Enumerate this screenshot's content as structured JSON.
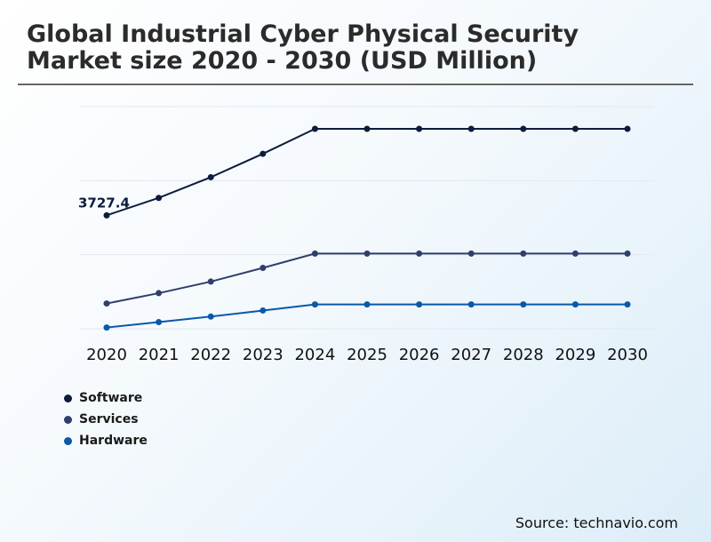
{
  "title": "Global Industrial Cyber Physical Security Market size 2020 - 2030 (USD Million)",
  "source": "Source: technavio.com",
  "chart_data": {
    "type": "line",
    "title": "Global Industrial Cyber Physical Security Market size 2020 - 2030 (USD Million)",
    "xlabel": "",
    "ylabel": "",
    "categories": [
      "2020",
      "2021",
      "2022",
      "2023",
      "2024",
      "2025",
      "2026",
      "2027",
      "2028",
      "2029",
      "2030"
    ],
    "ylim": [
      0,
      7300
    ],
    "grid": "horizontal",
    "legend": "bottom-left",
    "annotation": {
      "series": "Software",
      "index": 0,
      "text": "3727.4"
    },
    "series": [
      {
        "name": "Software",
        "color": "#0d1b3d",
        "values": [
          3727.4,
          4300,
          4980,
          5750,
          6570,
          6570,
          6570,
          6570,
          6570,
          6570,
          6570
        ]
      },
      {
        "name": "Services",
        "color": "#2e3f6b",
        "values": [
          830,
          1170,
          1550,
          2000,
          2470,
          2470,
          2470,
          2470,
          2470,
          2470,
          2470
        ]
      },
      {
        "name": "Hardware",
        "color": "#0b58a8",
        "values": [
          40,
          220,
          400,
          600,
          800,
          800,
          800,
          800,
          800,
          800,
          800
        ]
      }
    ]
  }
}
